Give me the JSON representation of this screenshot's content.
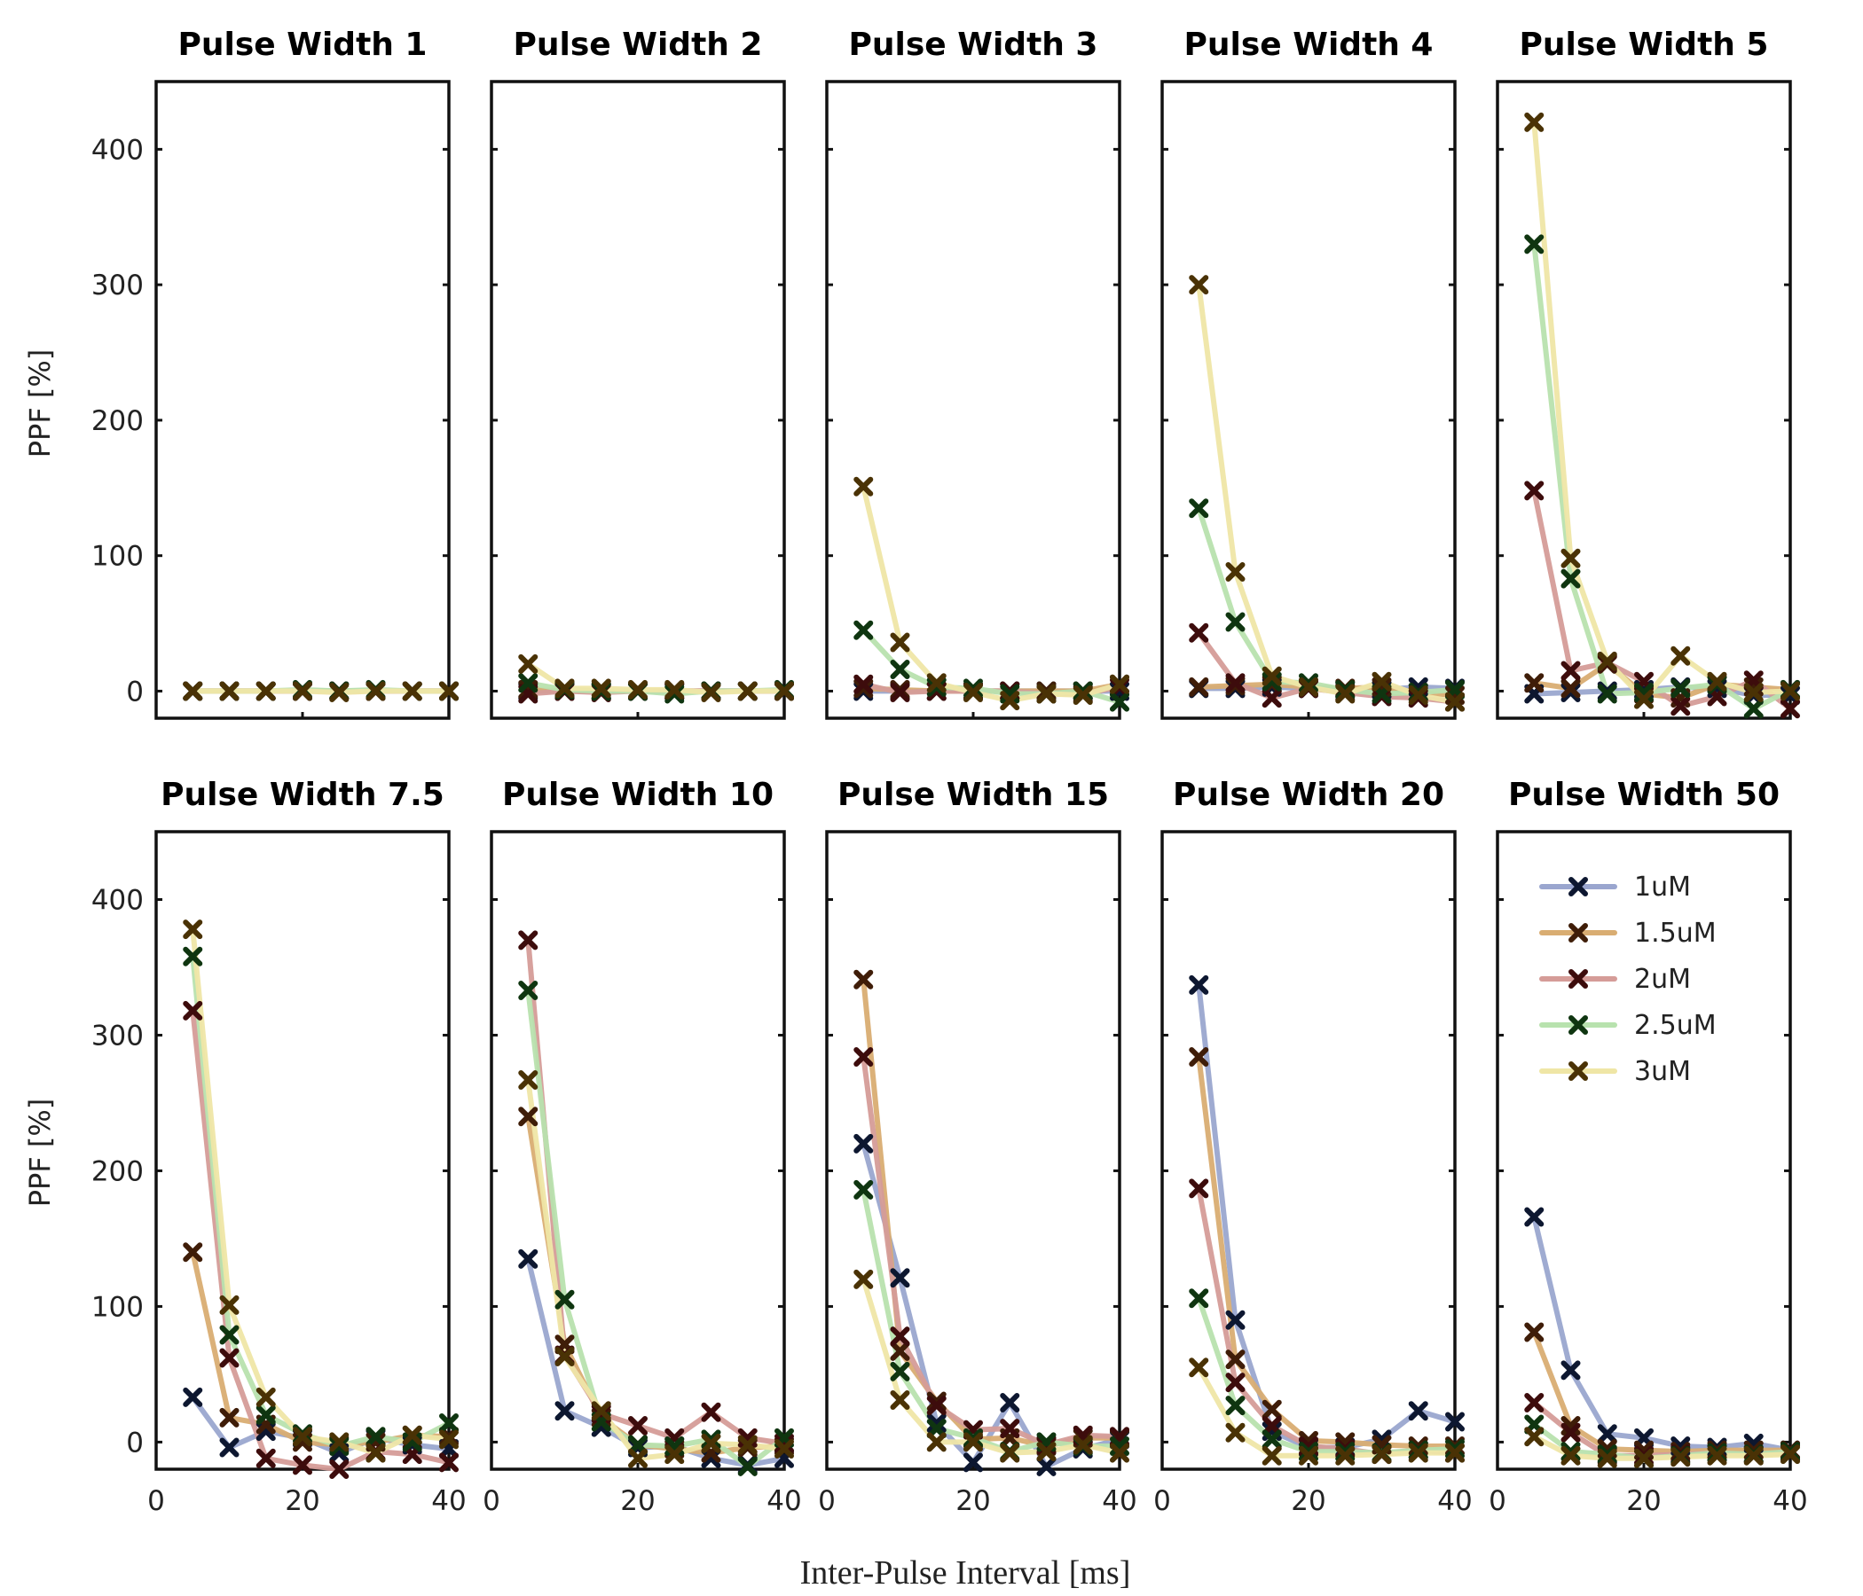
{
  "chart_data": {
    "type": "line",
    "xlabel": "Inter-Pulse Interval [ms]",
    "ylabel": "PPF [%]",
    "xlim": [
      0,
      40
    ],
    "ylim": [
      -20,
      450
    ],
    "xticks": [
      0,
      20,
      40
    ],
    "yticks": [
      0,
      100,
      200,
      300,
      400
    ],
    "x": [
      5,
      10,
      15,
      20,
      25,
      30,
      35,
      40
    ],
    "series_names": [
      "1uM",
      "1.5uM",
      "2uM",
      "2.5uM",
      "3uM"
    ],
    "series_colors": [
      "#9aa6cf",
      "#d9ad72",
      "#d59c98",
      "#b8e2ae",
      "#efe6a6"
    ],
    "marker_colors": [
      "#0d1730",
      "#3f1d08",
      "#3d0c0c",
      "#0f3510",
      "#4a3205"
    ],
    "legend_position": "upper-right of last panel",
    "panels": [
      {
        "title": "Pulse Width 1",
        "series": [
          {
            "name": "1uM",
            "values": [
              0,
              0,
              0,
              0,
              0,
              0,
              0,
              0
            ]
          },
          {
            "name": "1.5uM",
            "values": [
              0,
              0,
              0,
              0,
              0,
              0,
              0,
              0
            ]
          },
          {
            "name": "2uM",
            "values": [
              0,
              0,
              0,
              0,
              0,
              0,
              0,
              0
            ]
          },
          {
            "name": "2.5uM",
            "values": [
              0,
              0,
              0,
              1,
              0,
              1,
              0,
              0
            ]
          },
          {
            "name": "3uM",
            "values": [
              0,
              0,
              0,
              0,
              -1,
              0,
              0,
              0
            ]
          }
        ]
      },
      {
        "title": "Pulse Width 2",
        "series": [
          {
            "name": "1uM",
            "values": [
              0,
              0,
              0,
              0,
              0,
              0,
              0,
              0
            ]
          },
          {
            "name": "1.5uM",
            "values": [
              1,
              0,
              0,
              0,
              0,
              0,
              0,
              0
            ]
          },
          {
            "name": "2uM",
            "values": [
              -2,
              0,
              -1,
              0,
              0,
              0,
              0,
              0
            ]
          },
          {
            "name": "2.5uM",
            "values": [
              6,
              1,
              0,
              0,
              -2,
              0,
              0,
              1
            ]
          },
          {
            "name": "3uM",
            "values": [
              20,
              2,
              2,
              1,
              1,
              -1,
              0,
              0
            ]
          }
        ]
      },
      {
        "title": "Pulse Width 3",
        "series": [
          {
            "name": "1uM",
            "values": [
              0,
              0,
              0,
              0,
              0,
              0,
              0,
              0
            ]
          },
          {
            "name": "1.5uM",
            "values": [
              2,
              1,
              0,
              0,
              0,
              0,
              0,
              5
            ]
          },
          {
            "name": "2uM",
            "values": [
              5,
              -1,
              0,
              0,
              0,
              -2,
              -2,
              3
            ]
          },
          {
            "name": "2.5uM",
            "values": [
              45,
              16,
              3,
              2,
              -2,
              -2,
              0,
              -8
            ]
          },
          {
            "name": "3uM",
            "values": [
              151,
              36,
              6,
              -1,
              -7,
              -2,
              -3,
              5
            ]
          }
        ]
      },
      {
        "title": "Pulse Width 4",
        "series": [
          {
            "name": "1uM",
            "values": [
              2,
              2,
              3,
              2,
              1,
              1,
              3,
              2
            ]
          },
          {
            "name": "1.5uM",
            "values": [
              3,
              4,
              5,
              3,
              2,
              3,
              -1,
              -3
            ]
          },
          {
            "name": "2uM",
            "values": [
              43,
              6,
              -5,
              2,
              -1,
              -4,
              -5,
              -8
            ]
          },
          {
            "name": "2.5uM",
            "values": [
              135,
              51,
              7,
              6,
              1,
              -2,
              -1,
              1
            ]
          },
          {
            "name": "3uM",
            "values": [
              300,
              88,
              11,
              3,
              -2,
              7,
              -3,
              -8
            ]
          }
        ]
      },
      {
        "title": "Pulse Width 5",
        "series": [
          {
            "name": "1uM",
            "values": [
              -2,
              -1,
              0,
              1,
              3,
              2,
              -3,
              -3
            ]
          },
          {
            "name": "1.5uM",
            "values": [
              6,
              2,
              20,
              -2,
              -5,
              5,
              3,
              1
            ]
          },
          {
            "name": "2uM",
            "values": [
              148,
              15,
              21,
              7,
              -11,
              -4,
              8,
              -13
            ]
          },
          {
            "name": "2.5uM",
            "values": [
              330,
              83,
              -2,
              -1,
              2,
              5,
              -13,
              1
            ]
          },
          {
            "name": "3uM",
            "values": [
              420,
              98,
              22,
              -6,
              26,
              7,
              -1,
              0
            ]
          }
        ]
      },
      {
        "title": "Pulse Width 7.5",
        "series": [
          {
            "name": "1uM",
            "values": [
              33,
              -4,
              8,
              3,
              -8,
              3,
              -2,
              -5
            ]
          },
          {
            "name": "1.5uM",
            "values": [
              140,
              18,
              13,
              0,
              -2,
              0,
              5,
              4
            ]
          },
          {
            "name": "2uM",
            "values": [
              318,
              62,
              -12,
              -17,
              -20,
              -7,
              -9,
              -15
            ]
          },
          {
            "name": "2.5uM",
            "values": [
              358,
              79,
              20,
              6,
              -3,
              4,
              0,
              14
            ]
          },
          {
            "name": "3uM",
            "values": [
              378,
              101,
              33,
              4,
              0,
              -8,
              5,
              2
            ]
          }
        ]
      },
      {
        "title": "Pulse Width 10",
        "series": [
          {
            "name": "1uM",
            "values": [
              135,
              23,
              11,
              -4,
              -3,
              -12,
              -17,
              -12
            ]
          },
          {
            "name": "1.5uM",
            "values": [
              240,
              72,
              18,
              -2,
              -5,
              -8,
              -4,
              -3
            ]
          },
          {
            "name": "2uM",
            "values": [
              370,
              64,
              21,
              12,
              3,
              22,
              3,
              -1
            ]
          },
          {
            "name": "2.5uM",
            "values": [
              333,
              105,
              15,
              -2,
              -3,
              2,
              -18,
              3
            ]
          },
          {
            "name": "3uM",
            "values": [
              267,
              63,
              23,
              -12,
              -9,
              -1,
              -2,
              -5
            ]
          }
        ]
      },
      {
        "title": "Pulse Width 15",
        "series": [
          {
            "name": "1uM",
            "values": [
              220,
              121,
              14,
              -15,
              29,
              -18,
              -5,
              2
            ]
          },
          {
            "name": "1.5uM",
            "values": [
              341,
              67,
              30,
              2,
              3,
              -3,
              3,
              3
            ]
          },
          {
            "name": "2uM",
            "values": [
              284,
              78,
              27,
              9,
              10,
              -2,
              5,
              4
            ]
          },
          {
            "name": "2.5uM",
            "values": [
              186,
              52,
              10,
              3,
              -7,
              0,
              -3,
              -3
            ]
          },
          {
            "name": "3uM",
            "values": [
              120,
              31,
              0,
              0,
              -8,
              -7,
              -2,
              -8
            ]
          }
        ]
      },
      {
        "title": "Pulse Width 20",
        "series": [
          {
            "name": "1uM",
            "values": [
              337,
              90,
              8,
              -4,
              -4,
              2,
              23,
              15
            ]
          },
          {
            "name": "1.5uM",
            "values": [
              284,
              61,
              24,
              1,
              0,
              -2,
              -3,
              -3
            ]
          },
          {
            "name": "2uM",
            "values": [
              187,
              44,
              12,
              -3,
              -5,
              -9,
              -6,
              -8
            ]
          },
          {
            "name": "2.5uM",
            "values": [
              106,
              27,
              2,
              -7,
              -7,
              -8,
              -6,
              -5
            ]
          },
          {
            "name": "3uM",
            "values": [
              55,
              7,
              -10,
              -10,
              -10,
              -9,
              -8,
              -8
            ]
          }
        ]
      },
      {
        "title": "Pulse Width 50",
        "series": [
          {
            "name": "1uM",
            "values": [
              166,
              53,
              6,
              3,
              -3,
              -4,
              -1,
              -6
            ]
          },
          {
            "name": "1.5uM",
            "values": [
              81,
              12,
              -5,
              -6,
              -7,
              -6,
              -6,
              -6
            ]
          },
          {
            "name": "2uM",
            "values": [
              29,
              7,
              -10,
              -10,
              -9,
              -8,
              -9,
              -8
            ]
          },
          {
            "name": "2.5uM",
            "values": [
              13,
              -7,
              -9,
              -12,
              -10,
              -8,
              -9,
              -7
            ]
          },
          {
            "name": "3uM",
            "values": [
              4,
              -10,
              -12,
              -12,
              -11,
              -10,
              -10,
              -9
            ]
          }
        ]
      }
    ]
  }
}
